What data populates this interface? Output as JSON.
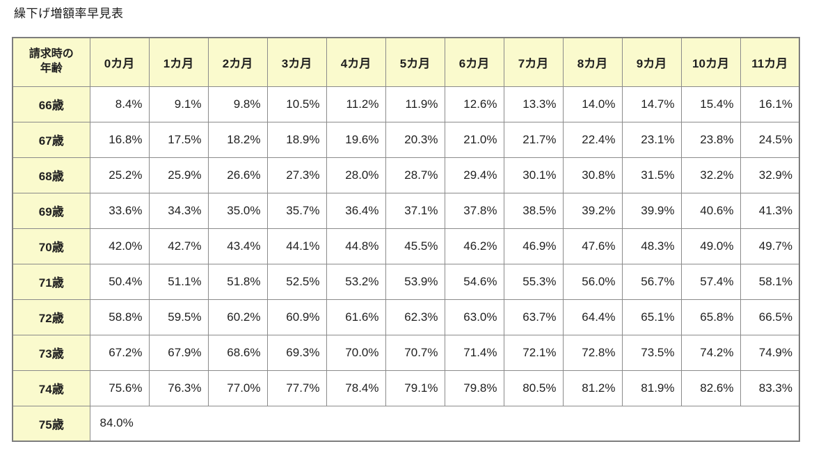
{
  "page": {
    "title": "繰下げ増額率早見表"
  },
  "colors": {
    "header_bg": "#fafacd",
    "cell_bg": "#ffffff",
    "grid_border": "#8a8a8a",
    "outer_border": "#7d7d7d",
    "text": "#1f1f1f"
  },
  "table": {
    "corner_header": "請求時の\n年齢",
    "month_headers": [
      "0カ月",
      "1カ月",
      "2カ月",
      "3カ月",
      "4カ月",
      "5カ月",
      "6カ月",
      "7カ月",
      "8カ月",
      "9カ月",
      "10カ月",
      "11カ月"
    ],
    "rows": [
      {
        "age": "66歳",
        "values": [
          "8.4%",
          "9.1%",
          "9.8%",
          "10.5%",
          "11.2%",
          "11.9%",
          "12.6%",
          "13.3%",
          "14.0%",
          "14.7%",
          "15.4%",
          "16.1%"
        ]
      },
      {
        "age": "67歳",
        "values": [
          "16.8%",
          "17.5%",
          "18.2%",
          "18.9%",
          "19.6%",
          "20.3%",
          "21.0%",
          "21.7%",
          "22.4%",
          "23.1%",
          "23.8%",
          "24.5%"
        ]
      },
      {
        "age": "68歳",
        "values": [
          "25.2%",
          "25.9%",
          "26.6%",
          "27.3%",
          "28.0%",
          "28.7%",
          "29.4%",
          "30.1%",
          "30.8%",
          "31.5%",
          "32.2%",
          "32.9%"
        ]
      },
      {
        "age": "69歳",
        "values": [
          "33.6%",
          "34.3%",
          "35.0%",
          "35.7%",
          "36.4%",
          "37.1%",
          "37.8%",
          "38.5%",
          "39.2%",
          "39.9%",
          "40.6%",
          "41.3%"
        ]
      },
      {
        "age": "70歳",
        "values": [
          "42.0%",
          "42.7%",
          "43.4%",
          "44.1%",
          "44.8%",
          "45.5%",
          "46.2%",
          "46.9%",
          "47.6%",
          "48.3%",
          "49.0%",
          "49.7%"
        ]
      },
      {
        "age": "71歳",
        "values": [
          "50.4%",
          "51.1%",
          "51.8%",
          "52.5%",
          "53.2%",
          "53.9%",
          "54.6%",
          "55.3%",
          "56.0%",
          "56.7%",
          "57.4%",
          "58.1%"
        ]
      },
      {
        "age": "72歳",
        "values": [
          "58.8%",
          "59.5%",
          "60.2%",
          "60.9%",
          "61.6%",
          "62.3%",
          "63.0%",
          "63.7%",
          "64.4%",
          "65.1%",
          "65.8%",
          "66.5%"
        ]
      },
      {
        "age": "73歳",
        "values": [
          "67.2%",
          "67.9%",
          "68.6%",
          "69.3%",
          "70.0%",
          "70.7%",
          "71.4%",
          "72.1%",
          "72.8%",
          "73.5%",
          "74.2%",
          "74.9%"
        ]
      },
      {
        "age": "74歳",
        "values": [
          "75.6%",
          "76.3%",
          "77.0%",
          "77.7%",
          "78.4%",
          "79.1%",
          "79.8%",
          "80.5%",
          "81.2%",
          "81.9%",
          "82.6%",
          "83.3%"
        ]
      },
      {
        "age": "75歳",
        "values": [
          "84.0%"
        ],
        "span_all": true
      }
    ]
  }
}
